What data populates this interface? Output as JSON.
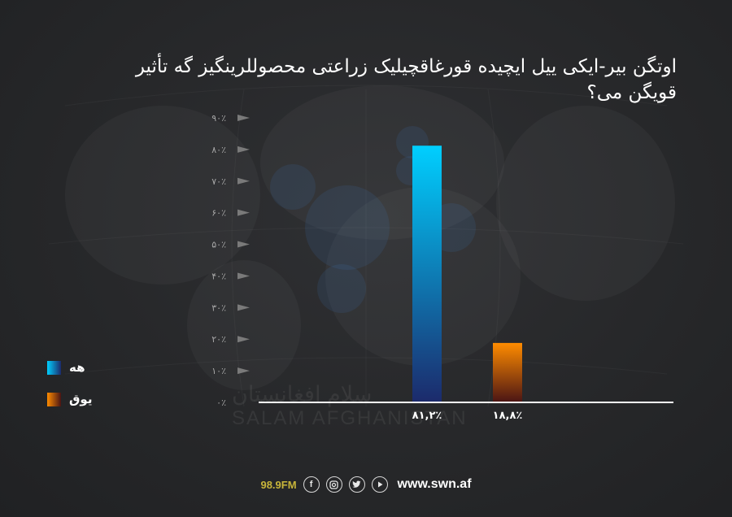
{
  "chart_data": {
    "type": "bar",
    "title": "اوتگن بیر-ایکی ییل ایچیده قورغاقچیلیک زراعتی محصوللرینگیز گه تأثیر قویگن می؟",
    "categories": [
      "هه",
      "یوق"
    ],
    "values": [
      81.2,
      18.8
    ],
    "value_labels": [
      "۸۱,۲٪",
      "۱۸,۸٪"
    ],
    "ylim": [
      0,
      90
    ],
    "yticks": [
      {
        "value": 0,
        "label": "۰٪"
      },
      {
        "value": 10,
        "label": "۱۰٪"
      },
      {
        "value": 20,
        "label": "۲۰٪"
      },
      {
        "value": 30,
        "label": "۳۰٪"
      },
      {
        "value": 40,
        "label": "۴۰٪"
      },
      {
        "value": 50,
        "label": "۵۰٪"
      },
      {
        "value": 60,
        "label": "۶۰٪"
      },
      {
        "value": 70,
        "label": "۷۰٪"
      },
      {
        "value": 80,
        "label": "۸۰٪"
      },
      {
        "value": 90,
        "label": "۹۰٪"
      }
    ],
    "series_colors": [
      {
        "top": "#00cfff",
        "bottom": "#1c2a6b"
      },
      {
        "top": "#ff8c00",
        "bottom": "#4a1414"
      }
    ],
    "legend_position": "left",
    "grid": false
  },
  "legend": [
    {
      "label": "هه"
    },
    {
      "label": "یوق"
    }
  ],
  "watermark": {
    "ar": "سلام افغانستان",
    "en": "SALAM AFGHANISTAN"
  },
  "footer": {
    "frequency": "98.9FM",
    "icons": [
      "facebook-icon",
      "instagram-icon",
      "twitter-icon",
      "youtube-icon"
    ],
    "website": "www.swn.af"
  }
}
